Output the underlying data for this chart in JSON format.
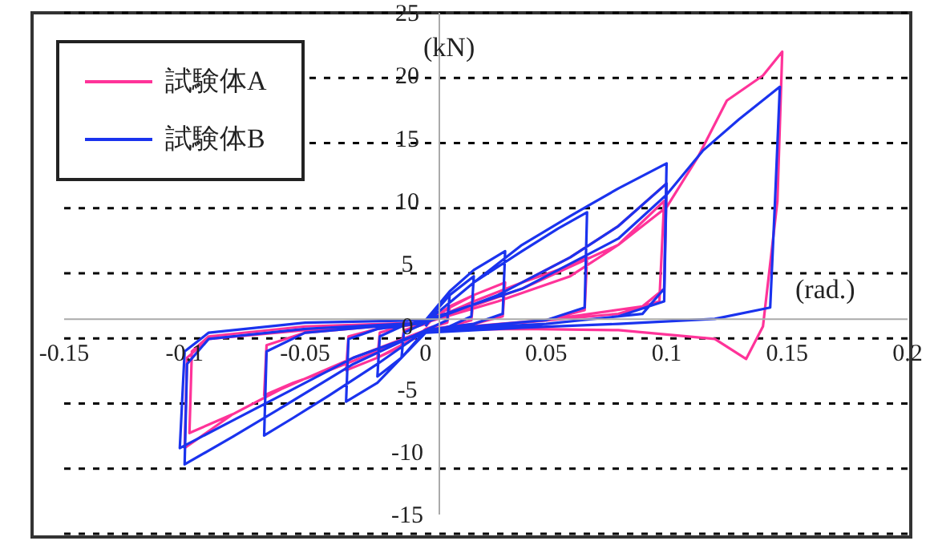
{
  "chart_data": {
    "type": "line",
    "xlabel": "(rad.)",
    "ylabel": "(kN)",
    "xlim": [
      -0.15,
      0.2
    ],
    "xticks": [
      -0.15,
      -0.1,
      -0.05,
      0,
      0.05,
      0.1,
      0.15,
      0.2
    ],
    "ylim": [
      -15,
      25
    ],
    "yticks": [
      -15,
      -10,
      -5,
      0,
      5,
      10,
      15,
      20,
      25
    ],
    "grid": "y",
    "legend": "top left",
    "marker": "none",
    "line_style": "solid",
    "series": [
      {
        "name": "試験体A",
        "color": "#ff3399",
        "x": [
          0,
          0.005,
          0.01,
          0.009,
          0,
          -0.005,
          -0.01,
          -0.009,
          0,
          0.01,
          0.02,
          0.019,
          0.01,
          0,
          -0.01,
          -0.02,
          -0.019,
          -0.01,
          0,
          0.01,
          0.02,
          0.033,
          0.032,
          0.02,
          0,
          -0.01,
          -0.02,
          -0.033,
          -0.032,
          -0.02,
          0,
          0.02,
          0.04,
          0.055,
          0.067,
          0.066,
          0.05,
          0.02,
          0,
          -0.02,
          -0.04,
          -0.055,
          -0.067,
          -0.066,
          -0.05,
          -0.02,
          0,
          0.02,
          0.04,
          0.06,
          0.08,
          0.1,
          0.099,
          0.09,
          0.05,
          0,
          -0.03,
          -0.06,
          -0.08,
          -0.1,
          -0.099,
          -0.09,
          -0.05,
          0,
          0.03,
          0.06,
          0.08,
          0.099,
          0.097,
          0.08,
          0.04,
          0,
          -0.03,
          -0.06,
          -0.08,
          -0.098,
          -0.097,
          -0.09,
          -0.05,
          0,
          0.04,
          0.08,
          0.1,
          0.113,
          0.125,
          0.14,
          0.148,
          0.146,
          0.14,
          0.133,
          0.12,
          0.08,
          0.04,
          0
        ],
        "values": [
          0,
          1,
          1.5,
          0.3,
          -0.2,
          -1,
          -1.5,
          -0.3,
          0.2,
          1.6,
          2.5,
          0.5,
          0,
          -0.3,
          -1.6,
          -2.5,
          -0.5,
          0,
          0.3,
          1.5,
          2.5,
          3.5,
          0.8,
          0.2,
          -0.3,
          -1.5,
          -2.5,
          -3.5,
          -0.8,
          -0.2,
          0.3,
          2,
          3.5,
          4.5,
          5.5,
          1.3,
          0.5,
          0,
          -0.3,
          -2,
          -3.5,
          -4.5,
          -5.5,
          -1.5,
          -0.5,
          0,
          0.3,
          2,
          3.5,
          5.5,
          8,
          11.4,
          3,
          1.6,
          0.5,
          -0.3,
          -2.5,
          -5,
          -7,
          -9.7,
          -2.5,
          -1,
          -0.3,
          0.3,
          2,
          4,
          6.5,
          10,
          2,
          1,
          0.3,
          -0.3,
          -2.5,
          -5,
          -7,
          -8.5,
          -2,
          -0.8,
          0,
          0.3,
          3,
          6.5,
          9.5,
          13.5,
          18,
          20,
          21.9,
          10,
          0,
          -2.6,
          -1,
          -0.3,
          -0.2,
          -0.3
        ]
      },
      {
        "name": "試験体B",
        "color": "#1a33ee",
        "x": [
          0,
          0.005,
          0.01,
          0.009,
          0,
          -0.005,
          -0.01,
          -0.009,
          0,
          0.01,
          0.02,
          0.019,
          0.01,
          0,
          -0.01,
          -0.02,
          -0.019,
          -0.01,
          0,
          0.01,
          0.02,
          0.033,
          0.032,
          0.02,
          0,
          -0.01,
          -0.02,
          -0.033,
          -0.032,
          -0.02,
          0,
          0.02,
          0.04,
          0.055,
          0.067,
          0.066,
          0.05,
          0.02,
          0,
          -0.02,
          -0.04,
          -0.055,
          -0.067,
          -0.066,
          -0.05,
          -0.02,
          0,
          0.02,
          0.04,
          0.06,
          0.08,
          0.1,
          0.099,
          0.09,
          0.05,
          0,
          -0.03,
          -0.06,
          -0.08,
          -0.1,
          -0.099,
          -0.09,
          -0.05,
          0,
          0.03,
          0.06,
          0.08,
          0.1,
          0.099,
          0.08,
          0.04,
          0,
          -0.03,
          -0.06,
          -0.08,
          -0.102,
          -0.1,
          -0.09,
          -0.05,
          0,
          0.04,
          0.08,
          0.1,
          0.115,
          0.13,
          0.147,
          0.145,
          0.143,
          0.12,
          0.08,
          0.04,
          0
        ],
        "values": [
          0,
          1.5,
          2.5,
          0.5,
          -0.3,
          -1.5,
          -2.5,
          -0.5,
          0.3,
          2.5,
          4,
          0.8,
          0,
          -0.5,
          -2.5,
          -4,
          -0.8,
          0,
          0.5,
          2.8,
          4.5,
          6,
          1,
          0.2,
          -0.3,
          -2.5,
          -4.5,
          -6,
          -1,
          -0.2,
          0.3,
          3.5,
          6,
          7.8,
          9.1,
          1.5,
          0.5,
          0,
          -0.3,
          -3,
          -5.5,
          -7.3,
          -8.7,
          -2,
          -0.5,
          0,
          0.3,
          3.5,
          6.5,
          8.8,
          11,
          13,
          3,
          1,
          0.2,
          -0.3,
          -3,
          -6.5,
          -8.8,
          -11,
          -3,
          -1,
          -0.2,
          0.3,
          2.5,
          5.5,
          8,
          11.4,
          2,
          0.8,
          0,
          -0.4,
          -2.5,
          -5.5,
          -7.5,
          -9.7,
          -2,
          -0.5,
          0.3,
          0.5,
          3,
          7,
          10.5,
          14,
          16.5,
          19.1,
          10,
          1.5,
          0.6,
          0.2,
          -0.1,
          -0.5
        ]
      }
    ]
  }
}
